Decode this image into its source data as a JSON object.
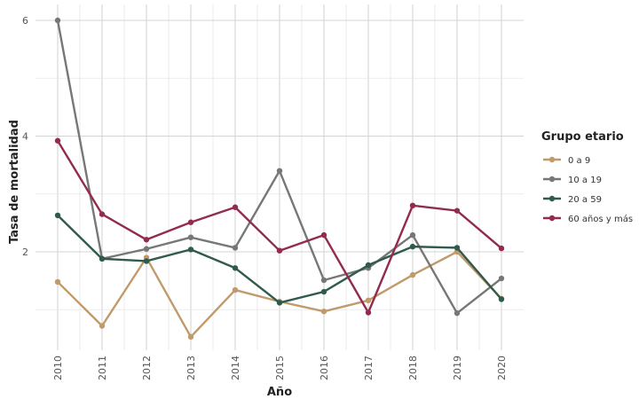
{
  "chart_data": {
    "type": "line",
    "xlabel": "Año",
    "ylabel": "Tasa de mortalidad",
    "x": [
      "2010",
      "2011",
      "2012",
      "2013",
      "2014",
      "2015",
      "2016",
      "2017",
      "2018",
      "2019",
      "2020"
    ],
    "ylim": [
      0.3,
      6.3
    ],
    "yticks": [
      2,
      4,
      6
    ],
    "grid": true,
    "legend": {
      "title": "Grupo etario",
      "position": "right"
    },
    "series": [
      {
        "name": "0 a 9",
        "color": "#c09a6b",
        "values": [
          1.48,
          0.72,
          1.9,
          0.53,
          1.34,
          1.14,
          0.97,
          1.16,
          1.6,
          2.0,
          1.19
        ]
      },
      {
        "name": "10 a 19",
        "color": "#777777",
        "values": [
          6.0,
          1.88,
          2.05,
          2.25,
          2.07,
          3.4,
          1.51,
          1.72,
          2.29,
          0.94,
          1.54
        ]
      },
      {
        "name": "20 a 59",
        "color": "#2f5a4c",
        "values": [
          2.63,
          1.88,
          1.84,
          2.04,
          1.72,
          1.12,
          1.31,
          1.77,
          2.09,
          2.07,
          1.18
        ]
      },
      {
        "name": "60 años y más",
        "color": "#922b4f",
        "values": [
          3.92,
          2.65,
          2.21,
          2.51,
          2.77,
          2.02,
          2.29,
          0.95,
          2.8,
          2.71,
          2.06
        ]
      }
    ]
  }
}
